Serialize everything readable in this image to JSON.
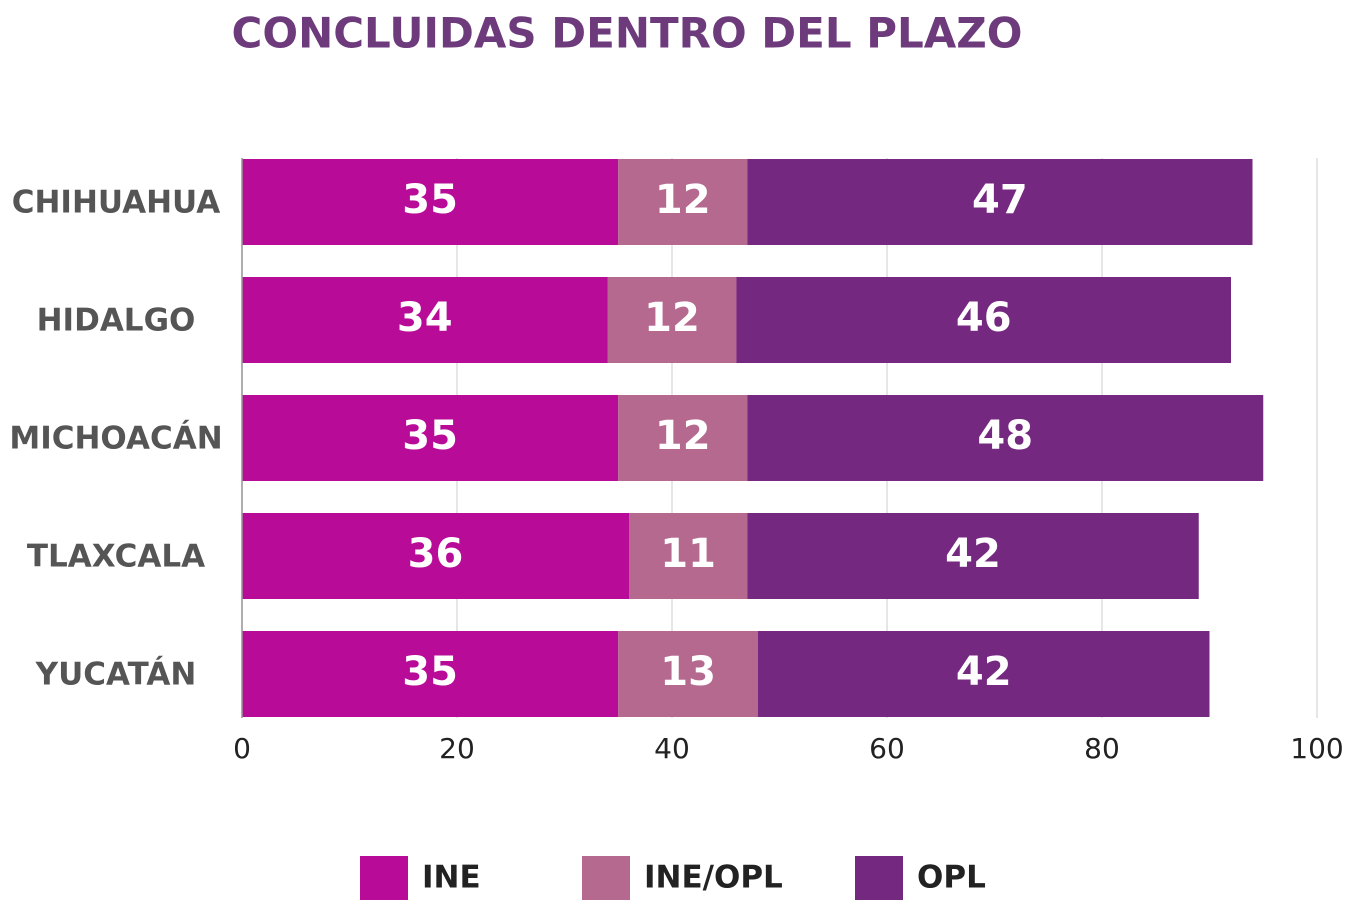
{
  "chart_data": {
    "type": "bar",
    "orientation": "horizontal",
    "stacked": true,
    "title": "CONCLUIDAS DENTRO DEL PLAZO",
    "categories": [
      "CHIHUAHUA",
      "HIDALGO",
      "MICHOACÁN",
      "TLAXCALA",
      "YUCATÁN"
    ],
    "series": [
      {
        "name": "INE",
        "color": "#b80c98",
        "values": [
          35,
          34,
          35,
          36,
          35
        ]
      },
      {
        "name": "INE/OPL",
        "color": "#b5698f",
        "values": [
          12,
          12,
          12,
          11,
          13
        ]
      },
      {
        "name": "OPL",
        "color": "#74287f",
        "values": [
          47,
          46,
          48,
          42,
          42
        ]
      }
    ],
    "xlim": [
      0,
      100
    ],
    "xticks": [
      0,
      20,
      40,
      60,
      80,
      100
    ],
    "grid": true,
    "legend": "bottom"
  }
}
